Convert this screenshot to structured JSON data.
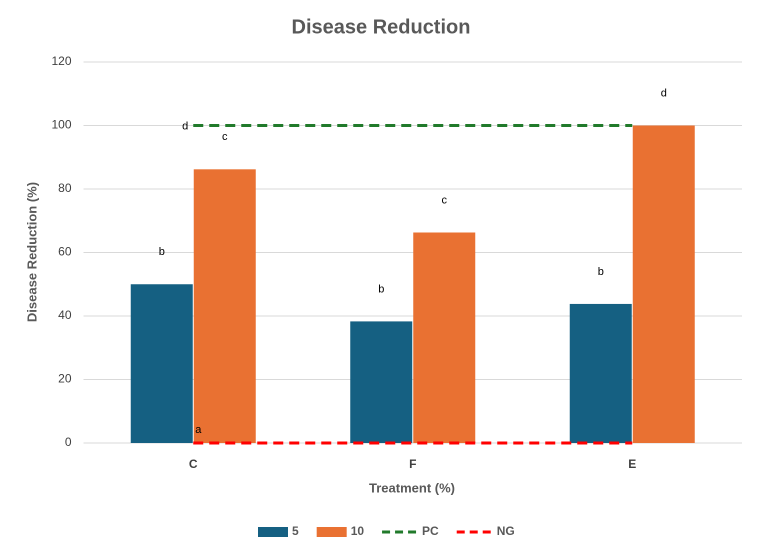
{
  "chart_data": {
    "type": "bar",
    "title": "Disease Reduction",
    "x_label": "Treatment (%)",
    "y_label": "Disease Reduction (%)",
    "categories": [
      "C",
      "F",
      "E"
    ],
    "series": [
      {
        "name": "5",
        "type": "bar",
        "color": "#156082",
        "values": [
          50,
          38.3,
          43.8
        ],
        "labels": [
          "b",
          "b",
          "b"
        ]
      },
      {
        "name": "10",
        "type": "bar",
        "color": "#e97132",
        "values": [
          86.2,
          66.3,
          100
        ],
        "labels": [
          "c",
          "c",
          "d"
        ]
      },
      {
        "name": "PC",
        "type": "line",
        "color": "#217a2b",
        "values": [
          100,
          100,
          100
        ],
        "labels": [
          "d",
          null,
          null
        ]
      },
      {
        "name": "NG",
        "type": "line",
        "color": "#ff0000",
        "values": [
          0,
          0,
          0
        ],
        "labels": [
          "a",
          null,
          null
        ]
      }
    ],
    "ylim": [
      0,
      120
    ],
    "yticks": [
      0,
      20,
      40,
      60,
      80,
      100,
      120
    ],
    "grid": true,
    "legend": "bottom"
  }
}
